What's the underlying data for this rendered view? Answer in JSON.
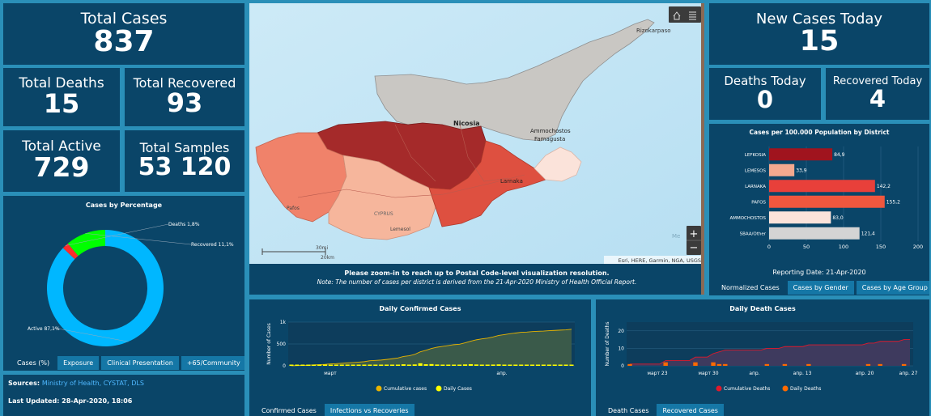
{
  "stats": {
    "total_cases": {
      "label": "Total Cases",
      "value": "837"
    },
    "total_deaths": {
      "label": "Total Deaths",
      "value": "15"
    },
    "total_recovered": {
      "label": "Total Recovered",
      "value": "93"
    },
    "total_active": {
      "label": "Total Active",
      "value": "729"
    },
    "total_samples": {
      "label": "Total Samples",
      "value": "53 120"
    },
    "new_cases_today": {
      "label": "New Cases Today",
      "value": "15"
    },
    "deaths_today": {
      "label": "Deaths Today",
      "value": "0"
    },
    "recovered_today": {
      "label": "Recovered Today",
      "value": "4"
    }
  },
  "donut": {
    "title": "Cases by Percentage",
    "slices": [
      {
        "label": "Active 87,1%",
        "value": 87.1,
        "color": "#00b7ff"
      },
      {
        "label": "Deaths 1,8%",
        "value": 1.8,
        "color": "#ff2a2a"
      },
      {
        "label": "Recovered 11,1%",
        "value": 11.1,
        "color": "#00ff00"
      }
    ],
    "tabs": [
      "Cases (%)",
      "Exposure",
      "Clinical Presentation",
      "+65/Community"
    ]
  },
  "sources": {
    "label": "Sources:",
    "links": "Ministry of Health, CYSTAT, DLS",
    "updated": "Last Updated: 28-Apr-2020, 18:06"
  },
  "map": {
    "places": {
      "rizokarpaso": "Rizokarpaso",
      "nicosia": "Nicosia",
      "ammochostos": "Ammochostos",
      "famagusta": "Famagusta",
      "larnaka": "Larnaka",
      "pafos": "Pafos",
      "cyprus": "CYPRUS",
      "lemesos": "Lemesol",
      "sea": "Me"
    },
    "scale_mi": "30mi",
    "scale_km": "20km",
    "attribution": "Esri, HERE, Garmin, NGA, USGS",
    "zoom_in": "+",
    "zoom_out": "−",
    "note_line1": "Please zoom-in to reach up to Postal Code-level visualization resolution.",
    "note_line2": "Note: The number of cases per district is derived from the 21-Apr-2020 Ministry of Health Official Report."
  },
  "district_chart": {
    "title": "Cases per 100.000 Population by District",
    "footer": "Reporting Date: 21-Apr-2020",
    "tabs": [
      "Normalized Cases",
      "Cases by Gender",
      "Cases by Age Group"
    ],
    "chart_data": {
      "type": "bar",
      "orientation": "horizontal",
      "categories": [
        "LEFKOSIA",
        "LEMESOS",
        "LARNAKA",
        "PAFOS",
        "AMMOCHOSTOS",
        "SBAA/Other"
      ],
      "values": [
        84.9,
        33.9,
        142.2,
        155.2,
        83.0,
        121.4
      ],
      "value_labels": [
        "84,9",
        "33,9",
        "142,2",
        "155,2",
        "83,0",
        "121,4"
      ],
      "colors": [
        "#a0141e",
        "#f4a98f",
        "#e8403a",
        "#f0573e",
        "#fbe3da",
        "#d4d4d4"
      ],
      "xlim": [
        0,
        200
      ],
      "xticks": [
        "0",
        "50",
        "100",
        "150",
        "200"
      ]
    }
  },
  "confirmed_chart": {
    "title": "Daily Confirmed Cases",
    "ylabel": "Number of Cases",
    "yticks": [
      "0",
      "500",
      "1k"
    ],
    "xticks": [
      "март",
      "апр."
    ],
    "legend": [
      "Cumulative cases",
      "Daily Cases"
    ],
    "tabs": [
      "Confirmed Cases",
      "Infections vs Recoveries"
    ],
    "chart_data": {
      "type": "area",
      "ylim": [
        0,
        1000
      ],
      "series": [
        {
          "name": "Cumulative cases",
          "color": "#e8b400",
          "values": [
            2,
            6,
            10,
            14,
            21,
            26,
            33,
            46,
            49,
            58,
            67,
            75,
            84,
            95,
            116,
            124,
            132,
            146,
            162,
            179,
            214,
            230,
            262,
            320,
            356,
            396,
            426,
            446,
            465,
            484,
            494,
            526,
            564,
            595,
            616,
            633,
            662,
            695,
            715,
            735,
            750,
            767,
            772,
            784,
            790,
            795,
            804,
            810,
            817,
            822,
            837
          ]
        },
        {
          "name": "Daily Cases",
          "color": "#ffff00",
          "values": [
            2,
            4,
            4,
            4,
            7,
            5,
            7,
            13,
            3,
            9,
            9,
            8,
            9,
            11,
            21,
            8,
            8,
            14,
            16,
            17,
            35,
            16,
            32,
            58,
            36,
            40,
            30,
            20,
            19,
            19,
            10,
            32,
            38,
            31,
            21,
            17,
            29,
            33,
            20,
            20,
            15,
            17,
            5,
            12,
            6,
            5,
            9,
            6,
            7,
            5,
            15
          ]
        }
      ]
    }
  },
  "death_chart": {
    "title": "Daily Death Cases",
    "ylabel": "Number of Deaths",
    "yticks": [
      "0",
      "10",
      "20"
    ],
    "xticks": [
      "март 23",
      "март 30",
      "апр.",
      "апр. 13",
      "апр. 20",
      "апр. 27"
    ],
    "legend": [
      "Cumulative Deaths",
      "Daily Deaths"
    ],
    "tabs": [
      "Death Cases",
      "Recovered Cases"
    ],
    "chart_data": {
      "type": "area",
      "ylim": [
        0,
        25
      ],
      "series": [
        {
          "name": "Cumulative Deaths",
          "color": "#e0192c",
          "values": [
            1,
            1,
            1,
            1,
            1,
            1,
            3,
            3,
            3,
            3,
            3,
            5,
            5,
            5,
            7,
            8,
            9,
            9,
            9,
            9,
            9,
            9,
            9,
            10,
            10,
            10,
            11,
            11,
            11,
            11,
            12,
            12,
            12,
            12,
            12,
            12,
            12,
            12,
            12,
            12,
            13,
            13,
            14,
            14,
            14,
            14,
            15,
            15
          ]
        },
        {
          "name": "Daily Deaths",
          "color": "#ff6a00",
          "values": [
            1,
            0,
            0,
            0,
            0,
            0,
            2,
            0,
            0,
            0,
            0,
            2,
            0,
            0,
            2,
            1,
            1,
            0,
            0,
            0,
            0,
            0,
            0,
            1,
            0,
            0,
            1,
            0,
            0,
            0,
            1,
            0,
            0,
            0,
            0,
            0,
            0,
            0,
            0,
            0,
            1,
            0,
            1,
            0,
            0,
            0,
            1,
            0
          ]
        }
      ]
    }
  }
}
